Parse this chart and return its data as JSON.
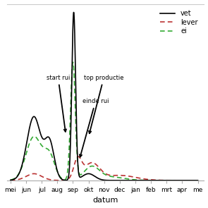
{
  "xlabel": "datum",
  "x_labels": [
    "mei",
    "jun",
    "jul",
    "aug",
    "sep",
    "okt",
    "nov",
    "dec",
    "jan",
    "feb",
    "mrt",
    "apr",
    "me"
  ],
  "x_ticks": [
    0,
    1,
    2,
    3,
    4,
    5,
    6,
    7,
    8,
    9,
    10,
    11,
    12
  ],
  "ylim": [
    0,
    1.05
  ],
  "xlim": [
    -0.2,
    12.4
  ],
  "background_color": "#ffffff",
  "grid_color": "#cccccc",
  "vet_color": "#000000",
  "lever_color": "#bb3333",
  "ei_color": "#33aa33",
  "annot_fontsize": 6,
  "tick_fontsize": 6.5,
  "xlabel_fontsize": 8,
  "legend_fontsize": 7
}
